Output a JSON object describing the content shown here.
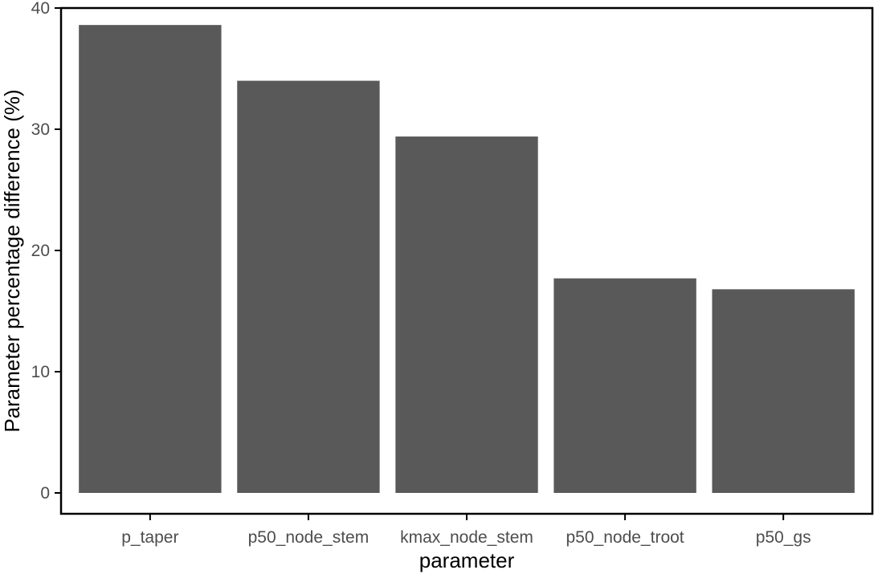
{
  "chart_data": {
    "type": "bar",
    "title": "",
    "xlabel": "parameter",
    "ylabel": "Parameter percentage difference (%)",
    "categories": [
      "p_taper",
      "p50_node_stem",
      "kmax_node_stem",
      "p50_node_troot",
      "p50_gs"
    ],
    "values": [
      38.6,
      34.0,
      29.4,
      17.7,
      16.8
    ],
    "ylim": [
      0,
      40
    ],
    "yticks": [
      0,
      10,
      20,
      30,
      40
    ],
    "grid": false,
    "legend": "none",
    "bar_color": "#595959",
    "frame_color": "#000000"
  }
}
